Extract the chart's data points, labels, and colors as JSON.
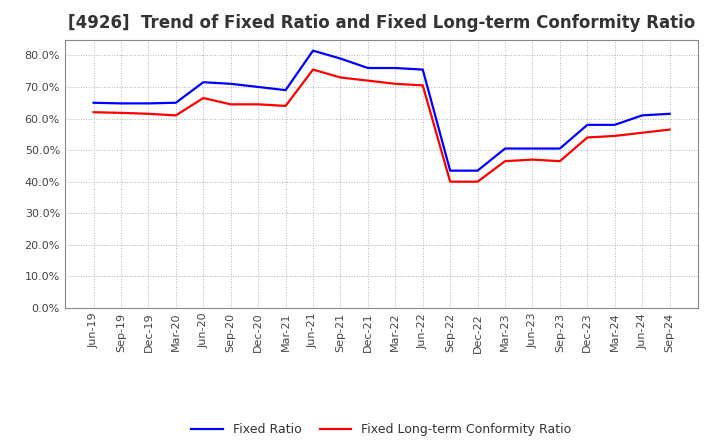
{
  "title": "[4926]  Trend of Fixed Ratio and Fixed Long-term Conformity Ratio",
  "labels": [
    "Jun-19",
    "Sep-19",
    "Dec-19",
    "Mar-20",
    "Jun-20",
    "Sep-20",
    "Dec-20",
    "Mar-21",
    "Jun-21",
    "Sep-21",
    "Dec-21",
    "Mar-22",
    "Jun-22",
    "Sep-22",
    "Dec-22",
    "Mar-23",
    "Jun-23",
    "Sep-23",
    "Dec-23",
    "Mar-24",
    "Jun-24",
    "Sep-24"
  ],
  "fixed_ratio": [
    0.65,
    0.648,
    0.648,
    0.65,
    0.715,
    0.71,
    0.7,
    0.69,
    0.815,
    0.79,
    0.76,
    0.76,
    0.755,
    0.435,
    0.435,
    0.505,
    0.505,
    0.505,
    0.58,
    0.58,
    0.61,
    0.615
  ],
  "fixed_lt_ratio": [
    0.62,
    0.618,
    0.615,
    0.61,
    0.665,
    0.645,
    0.645,
    0.64,
    0.755,
    0.73,
    0.72,
    0.71,
    0.705,
    0.4,
    0.4,
    0.465,
    0.47,
    0.465,
    0.54,
    0.545,
    0.555,
    0.565
  ],
  "fixed_ratio_color": "#0000FF",
  "fixed_lt_ratio_color": "#FF0000",
  "ylim": [
    0.0,
    0.85
  ],
  "yticks": [
    0.0,
    0.1,
    0.2,
    0.3,
    0.4,
    0.5,
    0.6,
    0.7,
    0.8
  ],
  "bg_color": "#FFFFFF",
  "plot_bg_color": "#FFFFFF",
  "grid_color": "#AAAAAA",
  "legend_fixed": "Fixed Ratio",
  "legend_fixed_lt": "Fixed Long-term Conformity Ratio",
  "title_fontsize": 12,
  "axis_fontsize": 8,
  "legend_fontsize": 9,
  "line_width": 1.6
}
